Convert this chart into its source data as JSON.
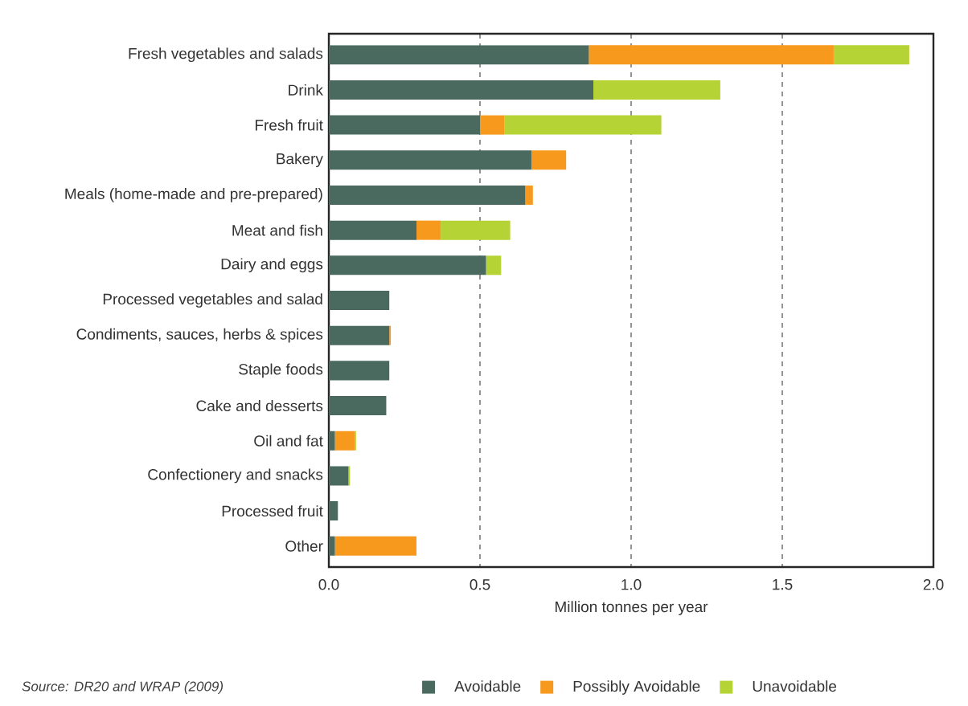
{
  "chart_data": {
    "type": "bar",
    "orientation": "horizontal",
    "stacked": true,
    "categories": [
      "Fresh vegetables and salads",
      "Drink",
      "Fresh fruit",
      "Bakery",
      "Meals (home-made and pre-prepared)",
      "Meat and fish",
      "Dairy and eggs",
      "Processed vegetables and salad",
      "Condiments, sauces, herbs & spices",
      "Staple foods",
      "Cake and desserts",
      "Oil and fat",
      "Confectionery and snacks",
      "Processed fruit",
      "Other"
    ],
    "series": [
      {
        "name": "Avoidable",
        "color": "#4a6a60",
        "values": [
          0.86,
          0.875,
          0.5,
          0.67,
          0.65,
          0.29,
          0.52,
          0.2,
          0.2,
          0.2,
          0.19,
          0.02,
          0.065,
          0.03,
          0.02
        ]
      },
      {
        "name": "Possibly Avoidable",
        "color": "#f7991c",
        "values": [
          0.81,
          null,
          0.08,
          0.115,
          0.025,
          0.08,
          null,
          null,
          0.005,
          null,
          null,
          0.065,
          null,
          null,
          0.27
        ]
      },
      {
        "name": "Unavoidable",
        "color": "#b5d334",
        "values": [
          0.25,
          0.42,
          0.52,
          null,
          null,
          0.23,
          0.05,
          null,
          null,
          null,
          null,
          0.005,
          0.005,
          null,
          null
        ]
      }
    ],
    "xlabel": "Million tonnes per year",
    "xlim": [
      0,
      2.0
    ],
    "xticks": [
      {
        "value": 0,
        "label": "0.0"
      },
      0.5,
      {
        "value": 1,
        "label": "1.0"
      },
      1.5,
      {
        "value": 2,
        "label": "2.0"
      }
    ],
    "grid": "x",
    "legend": "bottom",
    "annotations": [
      "Source: DR20 and WRAP (2009)"
    ]
  }
}
